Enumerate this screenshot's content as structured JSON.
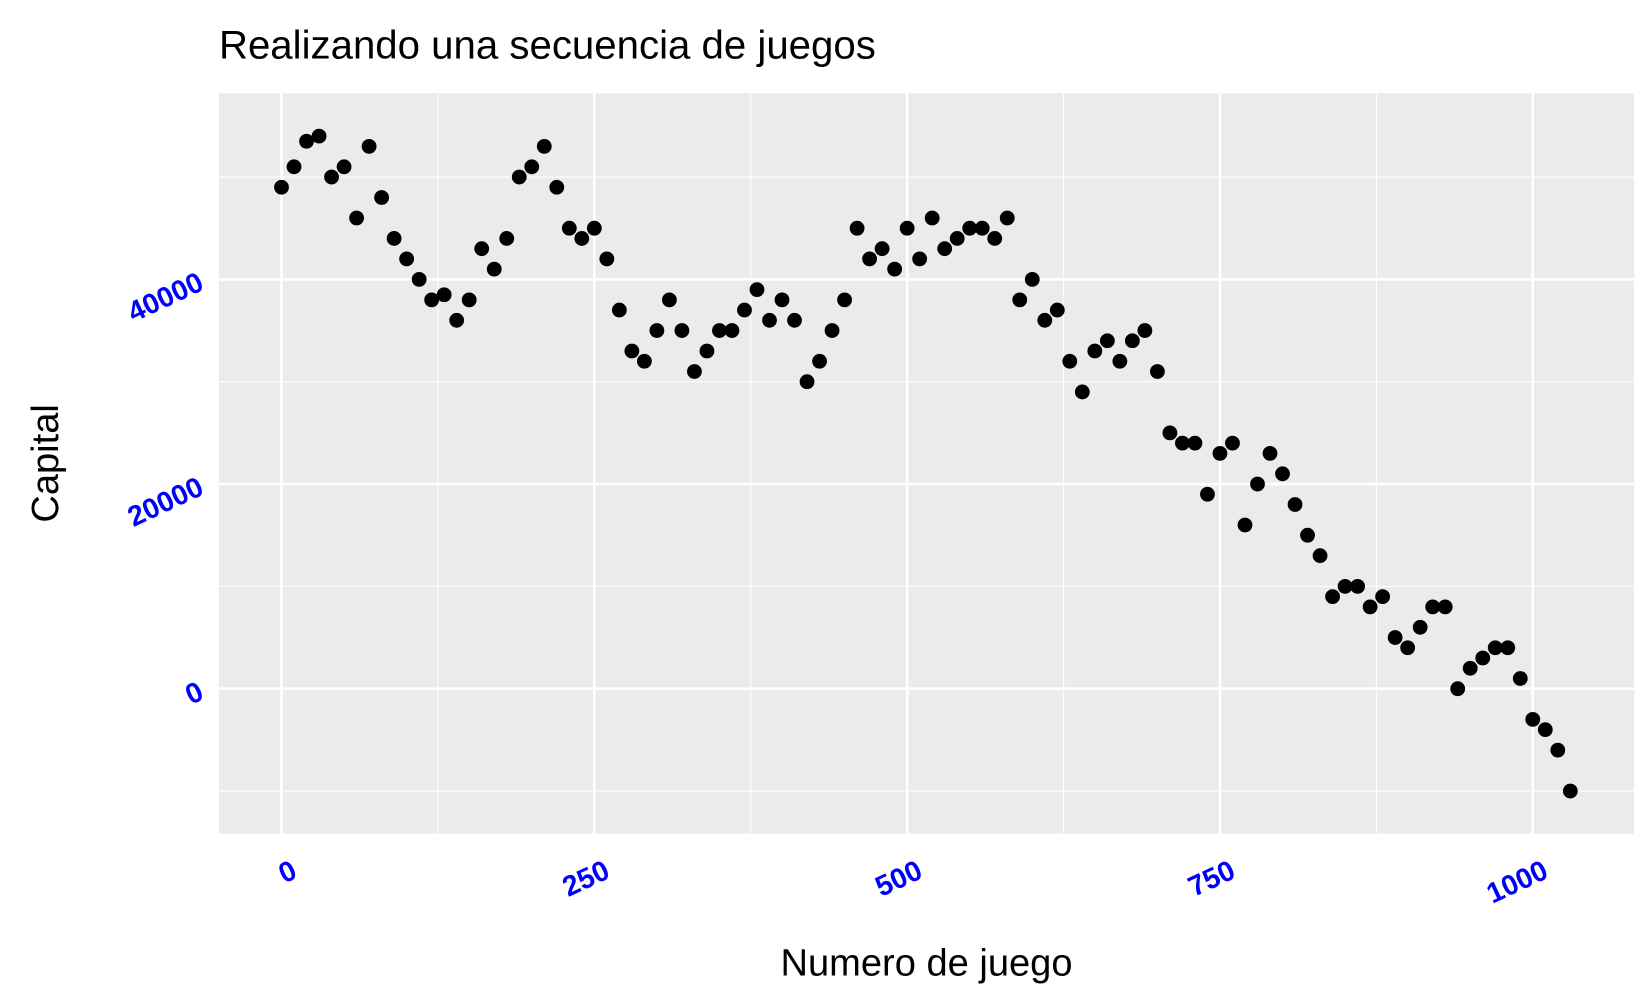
{
  "chart_data": {
    "type": "scatter",
    "title": "Realizando una secuencia de juegos",
    "x_label": "Numero de juego",
    "y_label": "Capital",
    "x": [
      0,
      10,
      20,
      30,
      40,
      50,
      60,
      70,
      80,
      90,
      100,
      110,
      120,
      130,
      140,
      150,
      160,
      170,
      180,
      190,
      200,
      210,
      220,
      230,
      240,
      250,
      260,
      270,
      280,
      290,
      300,
      310,
      320,
      330,
      340,
      350,
      360,
      370,
      380,
      390,
      400,
      410,
      420,
      430,
      440,
      450,
      460,
      470,
      480,
      490,
      500,
      510,
      520,
      530,
      540,
      550,
      560,
      570,
      580,
      590,
      600,
      610,
      620,
      630,
      640,
      650,
      660,
      670,
      680,
      690,
      700,
      710,
      720,
      730,
      740,
      750,
      760,
      770,
      780,
      790,
      800,
      810,
      820,
      830,
      840,
      850,
      860,
      870,
      880,
      890,
      900,
      910,
      920,
      930,
      940,
      950,
      960,
      970,
      980,
      990,
      1000,
      1010,
      1020,
      1030
    ],
    "values": [
      49000,
      51000,
      53500,
      54000,
      50000,
      51000,
      46000,
      53000,
      48000,
      44000,
      42000,
      40000,
      38000,
      38500,
      36000,
      38000,
      43000,
      41000,
      44000,
      50000,
      51000,
      53000,
      49000,
      45000,
      44000,
      45000,
      42000,
      37000,
      33000,
      32000,
      35000,
      38000,
      35000,
      31000,
      33000,
      35000,
      35000,
      37000,
      39000,
      36000,
      38000,
      36000,
      30000,
      32000,
      35000,
      38000,
      45000,
      42000,
      43000,
      41000,
      45000,
      42000,
      46000,
      43000,
      44000,
      45000,
      45000,
      44000,
      46000,
      38000,
      40000,
      36000,
      37000,
      32000,
      29000,
      33000,
      34000,
      32000,
      34000,
      35000,
      31000,
      25000,
      24000,
      24000,
      19000,
      23000,
      24000,
      16000,
      20000,
      23000,
      21000,
      18000,
      15000,
      13000,
      9000,
      10000,
      10000,
      8000,
      9000,
      5000,
      4000,
      6000,
      8000,
      8000,
      0,
      2000,
      3000,
      4000,
      4000,
      1000,
      -3000,
      -4000,
      -6000,
      -10000
    ],
    "color": "#000000",
    "xlim": [
      -50,
      1081
    ],
    "ylim": [
      -14160,
      58190
    ],
    "xticks": [
      0,
      250,
      500,
      750,
      1000
    ],
    "yticks": [
      0,
      20000,
      40000
    ],
    "xminor": [
      125,
      375,
      625,
      875
    ],
    "yminor": [
      -10000,
      10000,
      30000,
      50000
    ],
    "grid": true
  }
}
